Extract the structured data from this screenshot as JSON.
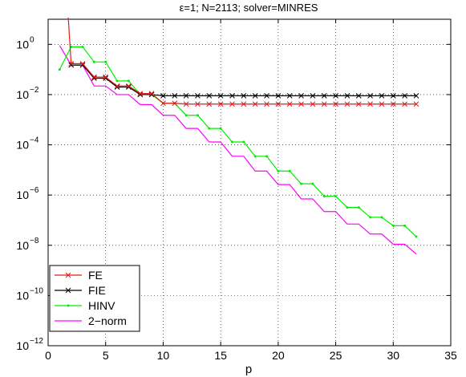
{
  "chart_data": {
    "type": "line",
    "title": "ε=1; N=2113; solver=MINRES",
    "xlabel": "p",
    "ylabel": "",
    "xlim": [
      0,
      35
    ],
    "ylim_log10": [
      -12,
      1
    ],
    "yscale": "log",
    "grid": true,
    "legend_location": "lower-left",
    "x_ticks": [
      0,
      5,
      10,
      15,
      20,
      25,
      30,
      35
    ],
    "x_tick_labels": [
      "0",
      "5",
      "10",
      "15",
      "20",
      "25",
      "30",
      "35"
    ],
    "y_ticks_log10": [
      -12,
      -10,
      -8,
      -6,
      -4,
      -2,
      0
    ],
    "y_tick_labels": [
      {
        "base": "10",
        "exp": "−12"
      },
      {
        "base": "10",
        "exp": "−10"
      },
      {
        "base": "10",
        "exp": "−8"
      },
      {
        "base": "10",
        "exp": "−6"
      },
      {
        "base": "10",
        "exp": "−4"
      },
      {
        "base": "10",
        "exp": "−2"
      },
      {
        "base": "10",
        "exp": "0"
      }
    ],
    "series": [
      {
        "name": "FE",
        "color": "#e41a1c",
        "marker": "x",
        "x": [
          1.75,
          2,
          3,
          4,
          5,
          6,
          7,
          8,
          9,
          10,
          11,
          12,
          13,
          14,
          15,
          16,
          17,
          18,
          19,
          20,
          21,
          22,
          23,
          24,
          25,
          26,
          27,
          28,
          29,
          30,
          31,
          32
        ],
        "y": [
          20,
          0.17,
          0.17,
          0.05,
          0.05,
          0.022,
          0.022,
          0.011,
          0.011,
          0.0045,
          0.0045,
          0.0042,
          0.0042,
          0.0042,
          0.0042,
          0.0042,
          0.0042,
          0.0042,
          0.0042,
          0.0042,
          0.0042,
          0.0042,
          0.0042,
          0.0042,
          0.0042,
          0.0042,
          0.0042,
          0.0042,
          0.0042,
          0.0042,
          0.0042,
          0.0042
        ]
      },
      {
        "name": "FIE",
        "color": "#000000",
        "marker": "x",
        "x": [
          2,
          3,
          4,
          5,
          6,
          7,
          8,
          9,
          10,
          11,
          12,
          13,
          14,
          15,
          16,
          17,
          18,
          19,
          20,
          21,
          22,
          23,
          24,
          25,
          26,
          27,
          28,
          29,
          30,
          31,
          32
        ],
        "y": [
          0.15,
          0.15,
          0.045,
          0.045,
          0.02,
          0.02,
          0.01,
          0.01,
          0.009,
          0.009,
          0.009,
          0.009,
          0.009,
          0.009,
          0.009,
          0.009,
          0.009,
          0.009,
          0.009,
          0.009,
          0.009,
          0.009,
          0.009,
          0.009,
          0.009,
          0.009,
          0.009,
          0.009,
          0.009,
          0.009,
          0.009
        ]
      },
      {
        "name": "HINV",
        "color": "#00ee00",
        "marker": "dot",
        "x": [
          1,
          2,
          3,
          4,
          5,
          6,
          7,
          8,
          9,
          10,
          11,
          12,
          13,
          14,
          15,
          16,
          17,
          18,
          19,
          20,
          21,
          22,
          23,
          24,
          25,
          26,
          27,
          28,
          29,
          30,
          31,
          32
        ],
        "y": [
          0.1,
          0.8,
          0.8,
          0.2,
          0.2,
          0.035,
          0.035,
          0.01,
          0.01,
          0.0045,
          0.0045,
          0.0015,
          0.0015,
          0.00045,
          0.00045,
          0.00013,
          0.00013,
          3.5e-05,
          3.5e-05,
          9e-06,
          9e-06,
          2.8e-06,
          2.8e-06,
          9e-07,
          9e-07,
          3.2e-07,
          3.2e-07,
          1.3e-07,
          1.3e-07,
          6e-08,
          6e-08,
          2.2e-08
        ]
      },
      {
        "name": "2−norm",
        "color": "#ff00ff",
        "marker": "none",
        "x": [
          1,
          2,
          3,
          4,
          5,
          6,
          7,
          8,
          9,
          10,
          11,
          12,
          13,
          14,
          15,
          16,
          17,
          18,
          19,
          20,
          21,
          22,
          23,
          24,
          25,
          26,
          27,
          28,
          29,
          30,
          31,
          32
        ],
        "y": [
          0.9,
          0.15,
          0.15,
          0.022,
          0.022,
          0.01,
          0.01,
          0.004,
          0.004,
          0.0015,
          0.0015,
          0.00045,
          0.00045,
          0.00013,
          0.00013,
          3.5e-05,
          3.5e-05,
          9e-06,
          9e-06,
          2.6e-06,
          2.6e-06,
          7e-07,
          7e-07,
          2.2e-07,
          2.2e-07,
          7e-08,
          7e-08,
          2.8e-08,
          2.8e-08,
          1.1e-08,
          1.1e-08,
          4.5e-09
        ]
      }
    ]
  }
}
